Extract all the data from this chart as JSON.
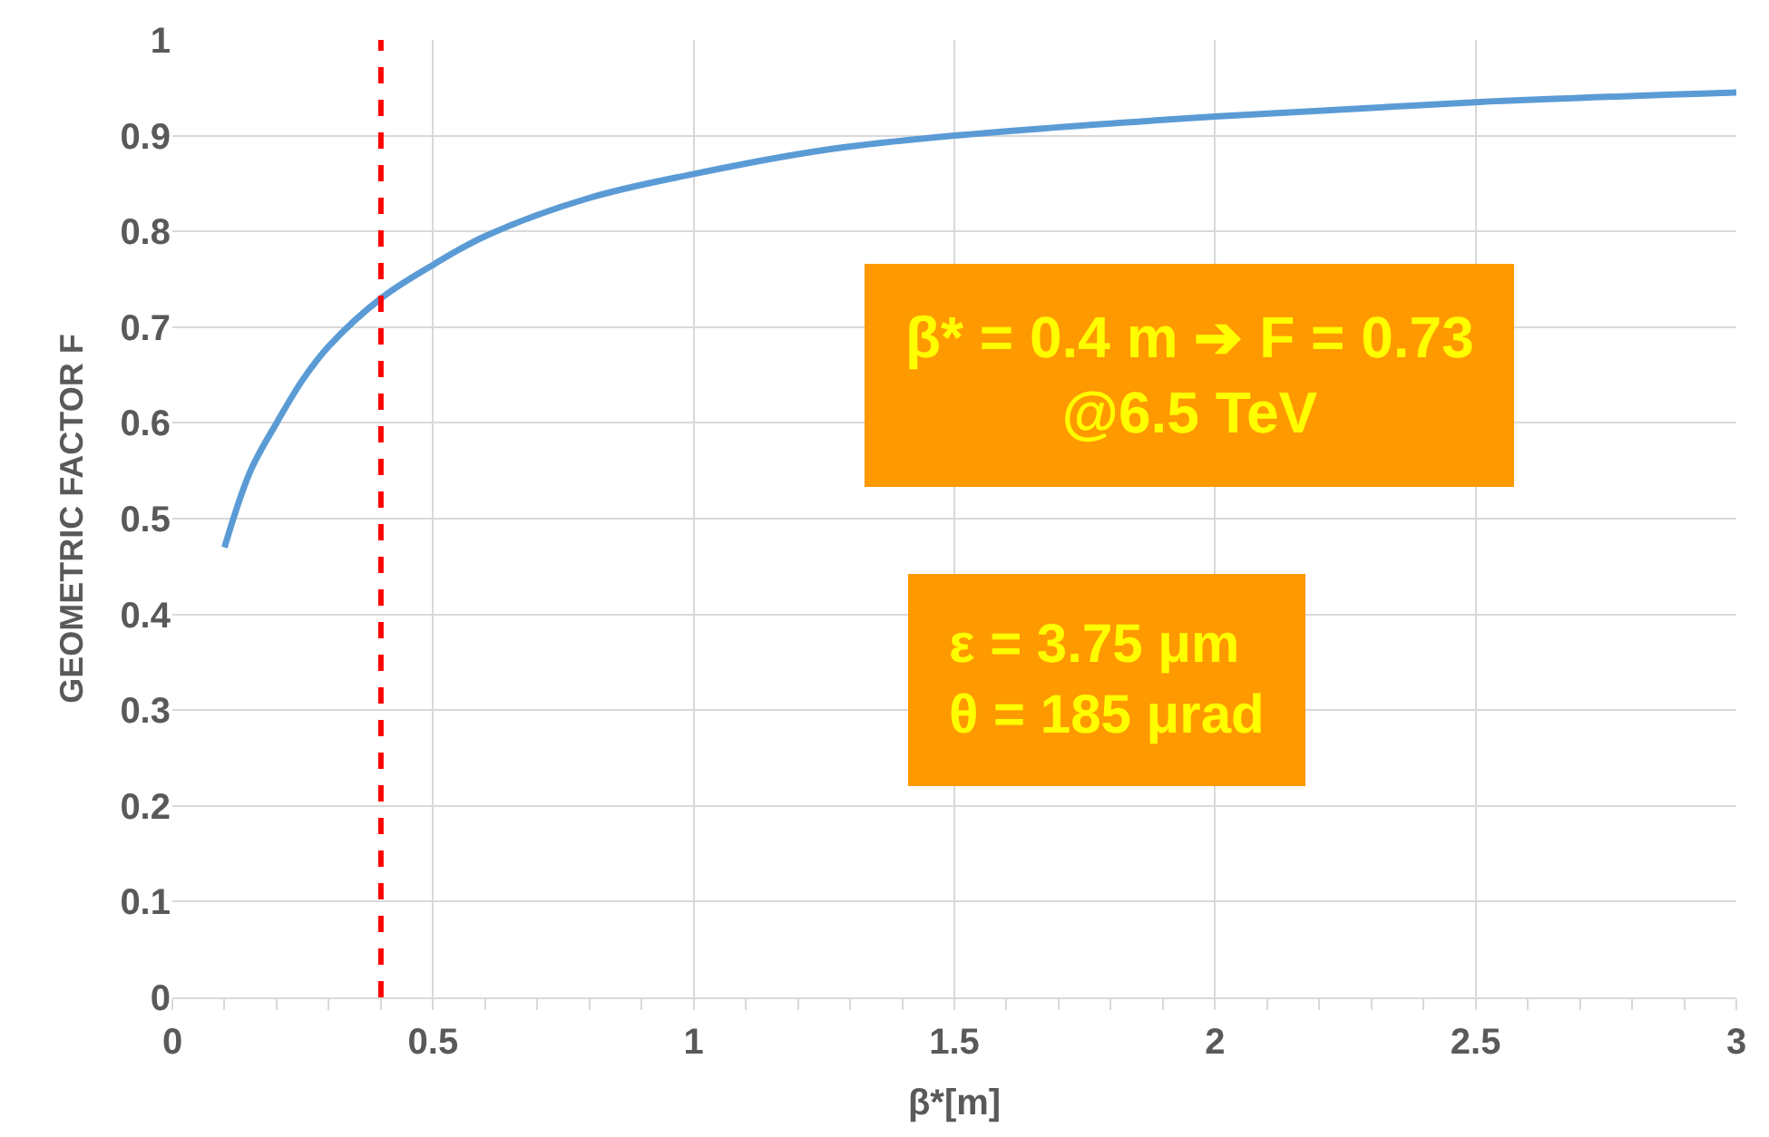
{
  "chart_data": {
    "type": "line",
    "xlabel": "β*[m]",
    "ylabel": "GEOMETRIC FACTOR F",
    "x": [
      0.1,
      0.15,
      0.2,
      0.25,
      0.3,
      0.4,
      0.5,
      0.6,
      0.8,
      1.0,
      1.25,
      1.5,
      2.0,
      2.5,
      3.0
    ],
    "series": [
      {
        "color": "#5b9bd5",
        "values": [
          0.47,
          0.55,
          0.6,
          0.645,
          0.68,
          0.73,
          0.765,
          0.795,
          0.835,
          0.86,
          0.885,
          0.9,
          0.92,
          0.935,
          0.945
        ]
      }
    ],
    "xlim": [
      0,
      3
    ],
    "xticks": [
      0,
      0.5,
      1,
      1.5,
      2,
      2.5,
      3
    ],
    "ylim": [
      0,
      1
    ],
    "yticks": [
      0,
      0.1,
      0.2,
      0.3,
      0.4,
      0.5,
      0.6,
      0.7,
      0.8,
      0.9,
      1
    ],
    "grid": true,
    "marker": "none",
    "line_style": "solid",
    "ref_lines": [
      {
        "axis": "x",
        "value": 0.4,
        "color": "#ff0000",
        "line_style": "dashed"
      }
    ],
    "annotations": [
      "β* = 0.4 m ➔ F = 0.73\n@6.5 TeV",
      "ε = 3.75 μm\nθ = 185 μrad"
    ]
  }
}
